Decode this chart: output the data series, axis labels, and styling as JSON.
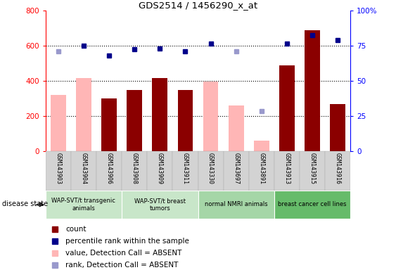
{
  "title": "GDS2514 / 1456290_x_at",
  "samples": [
    "GSM143903",
    "GSM143904",
    "GSM143906",
    "GSM143908",
    "GSM143909",
    "GSM143911",
    "GSM143330",
    "GSM143697",
    "GSM143891",
    "GSM143913",
    "GSM143915",
    "GSM143916"
  ],
  "bar_heights": [
    320,
    415,
    300,
    350,
    415,
    350,
    395,
    260,
    60,
    490,
    690,
    270
  ],
  "bar_is_absent": [
    true,
    true,
    false,
    false,
    false,
    false,
    true,
    true,
    true,
    false,
    false,
    false
  ],
  "rank_values_left": [
    570,
    600,
    545,
    580,
    585,
    570,
    615,
    570,
    230,
    615,
    660,
    635
  ],
  "rank_is_absent": [
    true,
    false,
    false,
    false,
    false,
    false,
    false,
    true,
    true,
    false,
    false,
    false
  ],
  "groups": [
    {
      "label": "WAP-SVT/t transgenic\nanimals",
      "start": 0,
      "end": 3,
      "color": "#c8e6c9"
    },
    {
      "label": "WAP-SVT/t breast\ntumors",
      "start": 3,
      "end": 6,
      "color": "#c8e6c9"
    },
    {
      "label": "normal NMRI animals",
      "start": 6,
      "end": 9,
      "color": "#a5d6a7"
    },
    {
      "label": "breast cancer cell lines",
      "start": 9,
      "end": 12,
      "color": "#66bb6a"
    }
  ],
  "ylim_left": [
    0,
    800
  ],
  "ylim_right": [
    0,
    100
  ],
  "yticks_left": [
    0,
    200,
    400,
    600,
    800
  ],
  "yticks_right": [
    0,
    25,
    50,
    75,
    100
  ],
  "bar_width": 0.6,
  "color_count_present": "#8b0000",
  "color_count_absent": "#ffb6b6",
  "color_rank_present": "#00008b",
  "color_rank_absent": "#9999cc",
  "legend_items": [
    {
      "label": "count",
      "color": "#8b0000"
    },
    {
      "label": "percentile rank within the sample",
      "color": "#00008b"
    },
    {
      "label": "value, Detection Call = ABSENT",
      "color": "#ffb6b6"
    },
    {
      "label": "rank, Detection Call = ABSENT",
      "color": "#9999cc"
    }
  ]
}
